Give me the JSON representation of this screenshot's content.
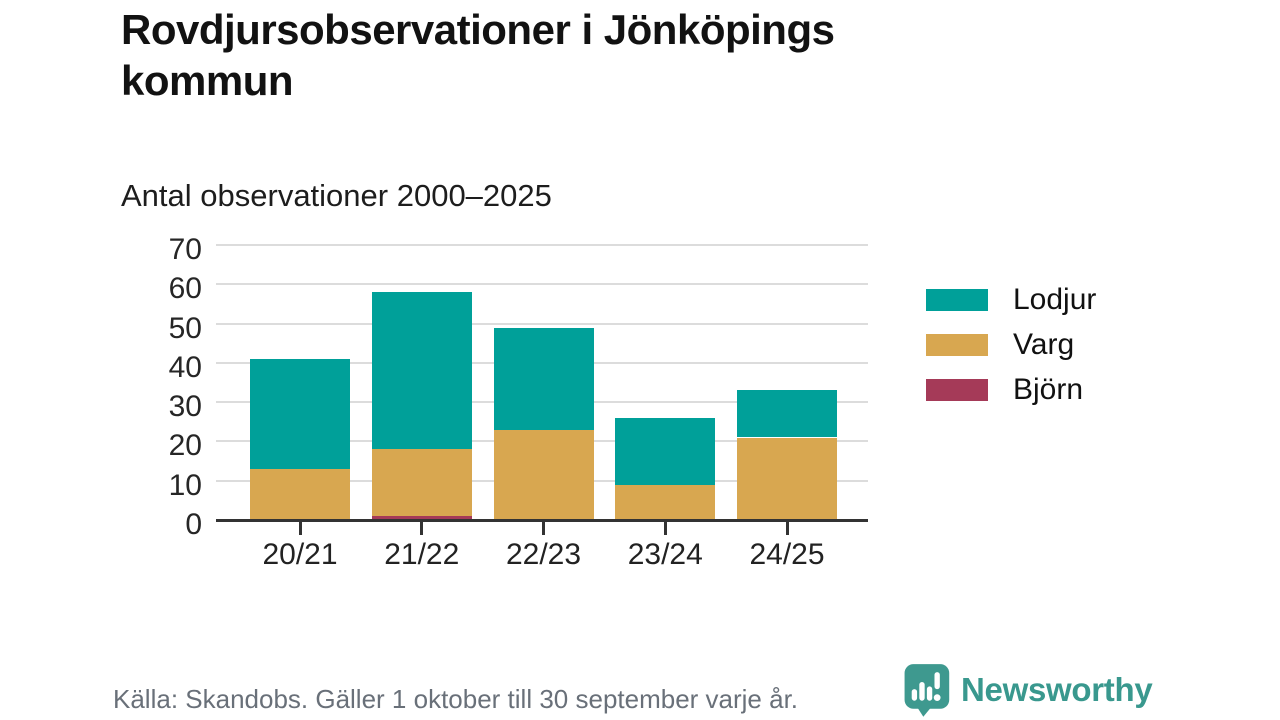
{
  "header": {
    "title_lines": [
      "Rovdjursobservationer i Jönköpings",
      "kommun"
    ],
    "subtitle": "Antal observationer 2000–2025"
  },
  "chart_data": {
    "type": "bar",
    "stacked": true,
    "title": "Rovdjursobservationer i Jönköpings kommun",
    "subtitle": "Antal observationer 2000–2025",
    "categories": [
      "20/21",
      "21/22",
      "22/23",
      "23/24",
      "24/25"
    ],
    "series": [
      {
        "name": "Lodjur",
        "color": "#00A099",
        "values": [
          28,
          40,
          26,
          17,
          12
        ]
      },
      {
        "name": "Varg",
        "color": "#D8A750",
        "values": [
          13,
          17,
          23,
          9,
          21
        ]
      },
      {
        "name": "Björn",
        "color": "#A53A58",
        "values": [
          0,
          1,
          0,
          0,
          0
        ]
      }
    ],
    "totals": [
      41,
      58,
      49,
      26,
      33
    ],
    "xlabel": "",
    "ylabel": "",
    "ylim": [
      0,
      70
    ],
    "yticks": [
      0,
      10,
      20,
      30,
      40,
      50,
      60,
      70
    ],
    "grid": true,
    "legend_position": "right"
  },
  "footer": {
    "source": "Källa: Skandobs. Gäller 1 oktober till 30 september varje år.",
    "brand": "Newsworthy"
  },
  "colors": {
    "axis": "#333333",
    "gridline": "#dcdcdc",
    "brand_teal": "#39988E"
  }
}
